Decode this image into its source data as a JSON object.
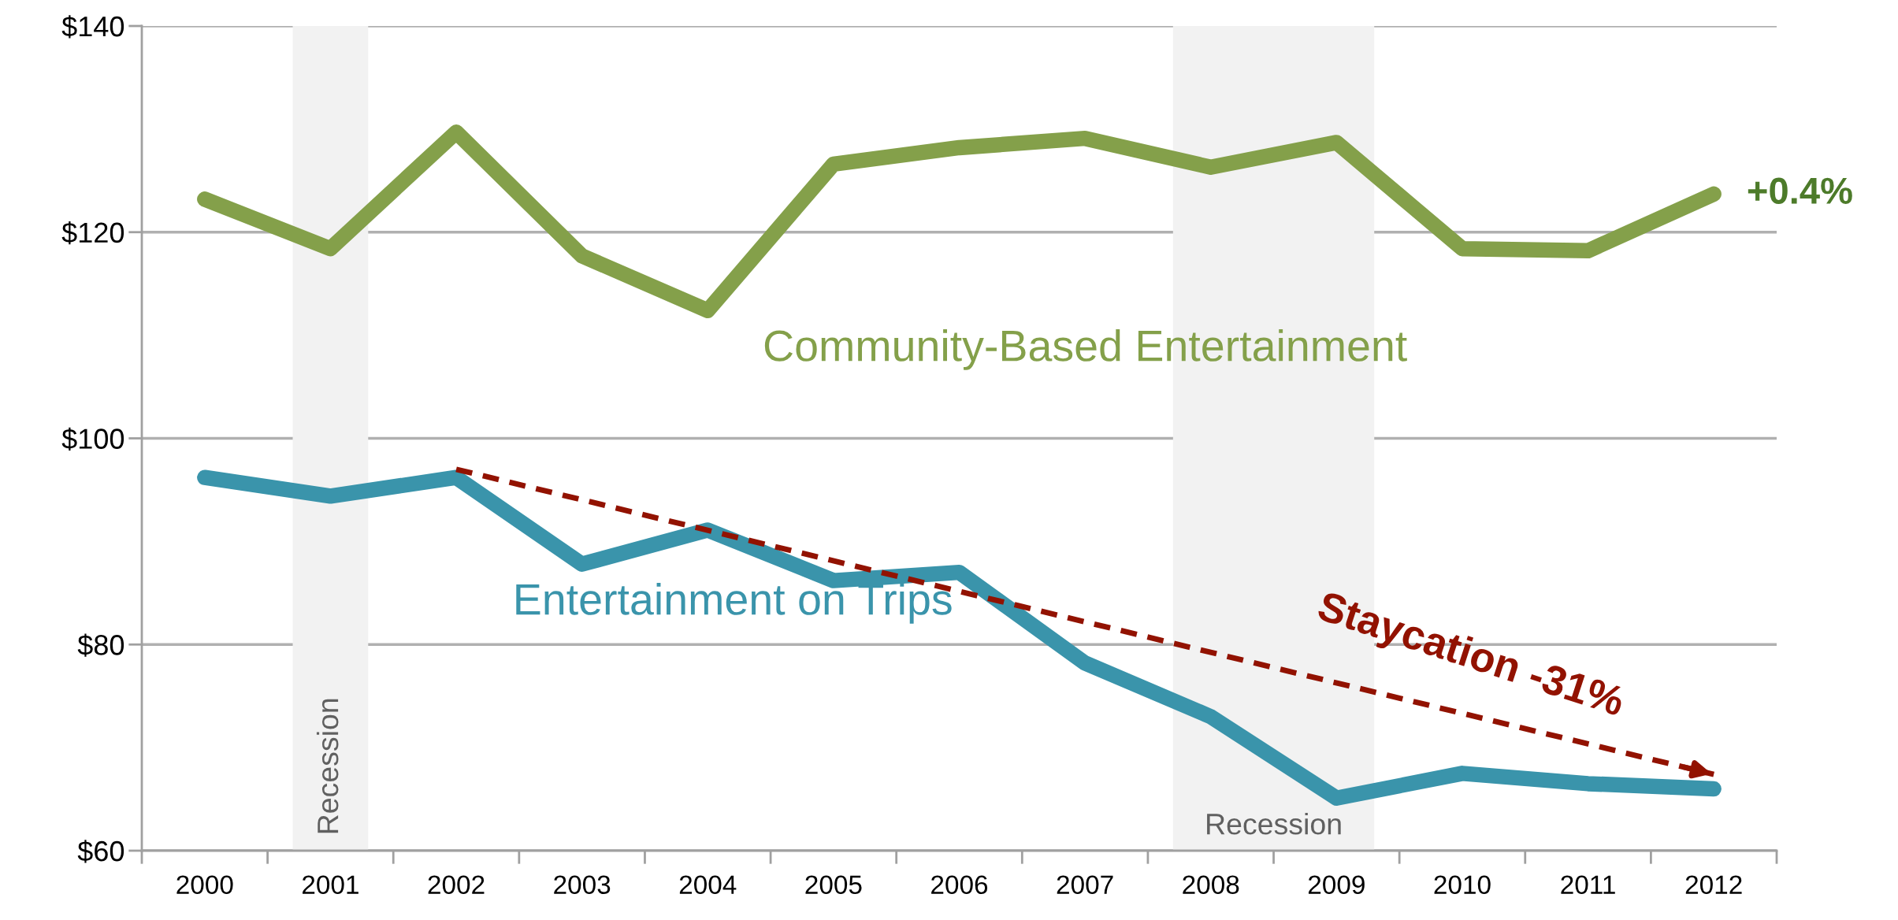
{
  "chart_data": {
    "type": "line",
    "categories": [
      "2000",
      "2001",
      "2002",
      "2003",
      "2004",
      "2005",
      "2006",
      "2007",
      "2008",
      "2009",
      "2010",
      "2011",
      "2012"
    ],
    "series": [
      {
        "name": "Community-Based Entertainment",
        "color": "#84a04a",
        "values": [
          123.2,
          118.4,
          129.7,
          117.7,
          112.4,
          126.6,
          128.2,
          129.1,
          126.3,
          128.7,
          118.4,
          118.2,
          123.7
        ]
      },
      {
        "name": "Entertainment on Trips",
        "color": "#3a94ab",
        "values": [
          96.2,
          94.4,
          96.2,
          87.8,
          91.1,
          86.2,
          87.0,
          78.2,
          73.0,
          65.1,
          67.5,
          66.5,
          66.0
        ]
      },
      {
        "type": "line",
        "color": "#921200",
        "line_style": "dashed",
        "values": [
          null,
          null,
          97.0,
          null,
          null,
          null,
          null,
          null,
          null,
          null,
          null,
          null,
          67.4
        ]
      }
    ],
    "ylim": [
      60,
      140
    ],
    "yticks": [
      {
        "value": 60,
        "label": "$60"
      },
      {
        "value": 80,
        "label": "$80"
      },
      {
        "value": 100,
        "label": "$100"
      },
      {
        "value": 120,
        "label": "$120"
      },
      {
        "value": 140,
        "label": "$140"
      }
    ],
    "grid": "y",
    "marker": "none",
    "line_style": "solid",
    "legend": false,
    "bands": [
      {
        "axis": "x",
        "from": "2001",
        "to": "2001",
        "label": "Recession",
        "color": "#f2f2f2"
      },
      {
        "axis": "x",
        "from": "2008",
        "to": "2009",
        "label": "Recession",
        "color": "#f2f2f2"
      }
    ],
    "annotations": [
      {
        "text": "+0.4%",
        "x": "2012",
        "y": 123.7
      },
      "Staycation -31%"
    ]
  }
}
